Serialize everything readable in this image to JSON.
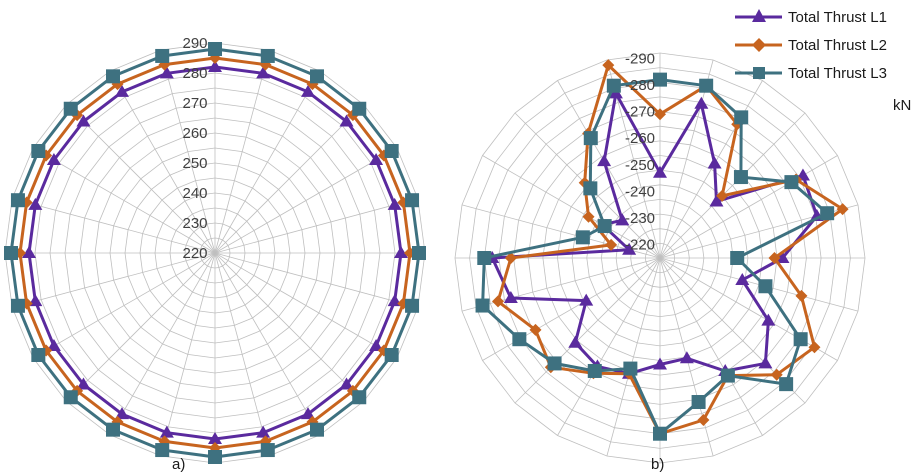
{
  "legend": [
    "Total Thrust L1",
    "Total Thrust L2",
    "Total Thrust L3"
  ],
  "unit_label": "kN",
  "colors": {
    "L1": "#5a2a9e",
    "L2": "#c7641f",
    "L3": "#3e7180",
    "grid": "#bfbfbf"
  },
  "markers": {
    "L1": "triangle",
    "L2": "diamond",
    "L3": "square"
  },
  "chart_data": [
    {
      "type": "radar",
      "panel_label": "a)",
      "directions": 24,
      "rlim": [
        220,
        290
      ],
      "tick_labels": [
        "220",
        "230",
        "240",
        "250",
        "260",
        "270",
        "280",
        "290"
      ],
      "grid": true,
      "series": [
        {
          "name": "Total Thrust L1",
          "values": [
            282,
            282,
            282,
            282,
            282,
            282,
            282,
            282,
            282,
            282,
            282,
            282,
            282,
            282,
            282,
            282,
            282,
            282,
            282,
            282,
            282,
            282,
            282,
            282
          ]
        },
        {
          "name": "Total Thrust L2",
          "values": [
            285,
            285,
            285,
            285,
            285,
            285,
            285,
            285,
            285,
            285,
            285,
            285,
            285,
            285,
            285,
            285,
            285,
            285,
            285,
            285,
            285,
            285,
            285,
            285
          ]
        },
        {
          "name": "Total Thrust L3",
          "values": [
            288,
            288,
            288,
            288,
            288,
            288,
            288,
            288,
            288,
            288,
            288,
            288,
            288,
            288,
            288,
            288,
            288,
            288,
            288,
            288,
            288,
            288,
            288,
            288
          ]
        }
      ]
    },
    {
      "type": "radar",
      "panel_label": "b)",
      "directions": 24,
      "rlim": [
        -215,
        -292
      ],
      "tick_labels": [
        "-220",
        "-230",
        "-240",
        "-250",
        "-260",
        "-270",
        "-280",
        "-290"
      ],
      "grid": true,
      "series": [
        {
          "name": "Total Thrust L1",
          "values": [
            -247,
            -275,
            -256,
            -245,
            -277,
            -276,
            -261,
            -247,
            -262,
            -271,
            -264,
            -254,
            -255,
            -260,
            -262,
            -260,
            -247,
            -273,
            -278,
            -227,
            -240,
            -235,
            -257,
            -279
          ]
        },
        {
          "name": "Total Thrust L2",
          "values": [
            -269,
            -282,
            -273,
            -248,
            -274,
            -286,
            -258,
            -270,
            -282,
            -277,
            -266,
            -278,
            -281,
            -260,
            -265,
            -273,
            -269,
            -278,
            -271,
            -234,
            -246,
            -255,
            -269,
            -290
          ]
        },
        {
          "name": "Total Thrust L3",
          "values": [
            -282,
            -282,
            -276,
            -258,
            -272,
            -280,
            -244,
            -256,
            -276,
            -282,
            -266,
            -271,
            -281,
            -258,
            -264,
            -271,
            -276,
            -284,
            -281,
            -245,
            -239,
            -252,
            -267,
            -282
          ]
        }
      ]
    }
  ]
}
